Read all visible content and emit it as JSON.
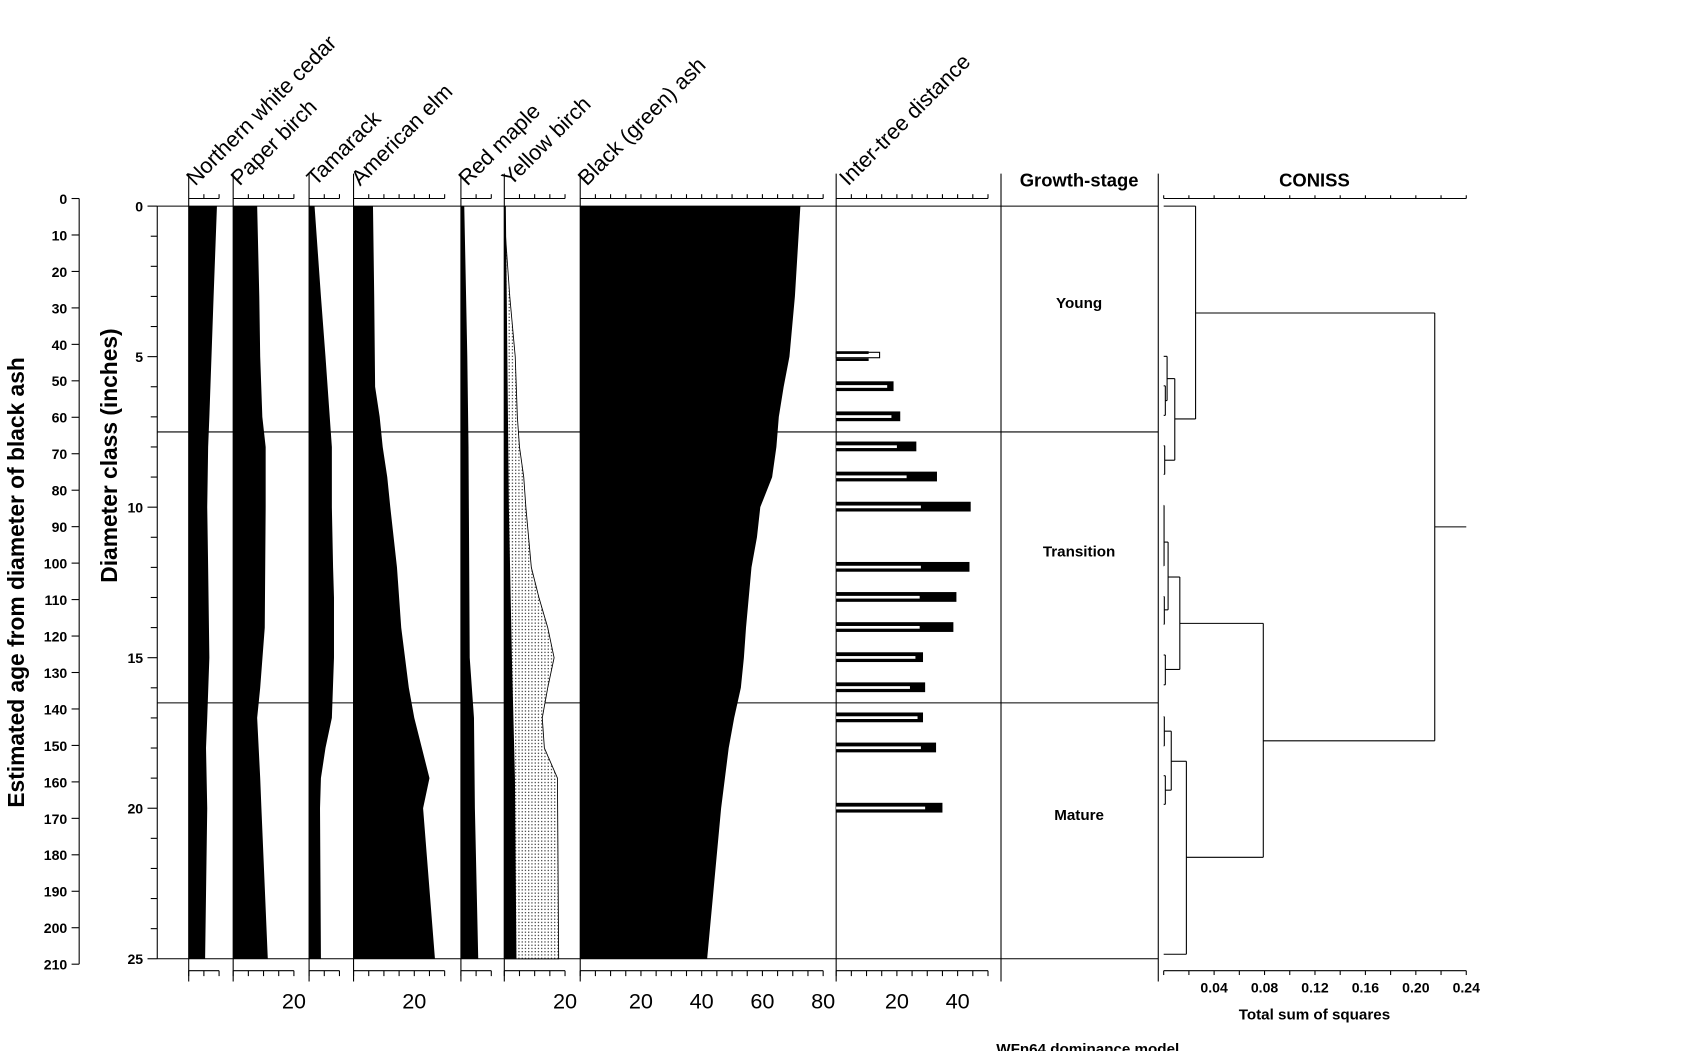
{
  "chart_data": {
    "type": "stratigraphic-diagram",
    "title": "",
    "footer": "WFn64 dominance model",
    "y_axes": [
      {
        "label": "Estimated age from diameter of black ash",
        "range": [
          0,
          210
        ],
        "ticks": [
          0,
          10,
          20,
          30,
          40,
          50,
          60,
          70,
          80,
          90,
          100,
          110,
          120,
          130,
          140,
          150,
          160,
          170,
          180,
          190,
          200,
          210
        ]
      },
      {
        "label": "Diameter class (inches)",
        "range": [
          0,
          25
        ],
        "ticks": [
          0,
          5,
          10,
          15,
          20,
          25
        ]
      }
    ],
    "species": [
      {
        "name": "Northern white cedar",
        "axis_max": 10,
        "tick_labels": [],
        "color": "#000000",
        "profile": [
          [
            0,
            9.3
          ],
          [
            3,
            8.2
          ],
          [
            5,
            7.5
          ],
          [
            7,
            6.8
          ],
          [
            8,
            6.4
          ],
          [
            10,
            6.1
          ],
          [
            12,
            6.4
          ],
          [
            15,
            6.8
          ],
          [
            17,
            6.1
          ],
          [
            18,
            5.7
          ],
          [
            20,
            6.1
          ],
          [
            25,
            5.4
          ]
        ]
      },
      {
        "name": "Paper birch",
        "axis_max": 20,
        "tick_labels": [
          "20"
        ],
        "color": "#000000",
        "profile": [
          [
            0,
            7.9
          ],
          [
            3,
            8.6
          ],
          [
            5,
            8.9
          ],
          [
            7,
            9.6
          ],
          [
            8,
            10.7
          ],
          [
            10,
            10.7
          ],
          [
            14,
            10.4
          ],
          [
            16,
            8.9
          ],
          [
            17,
            7.9
          ],
          [
            19,
            8.9
          ],
          [
            20,
            9.3
          ],
          [
            25,
            11.4
          ]
        ]
      },
      {
        "name": "Tamarack",
        "axis_max": 10,
        "tick_labels": [],
        "color": "#000000",
        "profile": [
          [
            0,
            1.8
          ],
          [
            3,
            3.9
          ],
          [
            5,
            5.4
          ],
          [
            7,
            6.8
          ],
          [
            8,
            7.5
          ],
          [
            10,
            7.5
          ],
          [
            12,
            7.9
          ],
          [
            13,
            8.2
          ],
          [
            15,
            8.2
          ],
          [
            17,
            7.5
          ],
          [
            18,
            5.4
          ],
          [
            19,
            3.9
          ],
          [
            20,
            3.6
          ],
          [
            25,
            3.9
          ]
        ]
      },
      {
        "name": "American elm",
        "axis_max": 30,
        "tick_labels": [
          "20"
        ],
        "color": "#000000",
        "profile": [
          [
            0,
            6.4
          ],
          [
            3,
            6.8
          ],
          [
            6,
            7.1
          ],
          [
            7,
            8.6
          ],
          [
            8,
            9.6
          ],
          [
            9,
            11.1
          ],
          [
            10,
            12.1
          ],
          [
            12,
            14.3
          ],
          [
            14,
            15.7
          ],
          [
            16,
            18.2
          ],
          [
            17,
            20
          ],
          [
            19,
            25
          ],
          [
            20,
            22.9
          ],
          [
            25,
            26.8
          ]
        ]
      },
      {
        "name": "Red maple",
        "axis_max": 10,
        "tick_labels": [],
        "color": "#000000",
        "profile": [
          [
            0,
            1.1
          ],
          [
            5,
            2.1
          ],
          [
            8,
            2.5
          ],
          [
            15,
            2.9
          ],
          [
            16,
            3.6
          ],
          [
            17,
            4.3
          ],
          [
            20,
            4.6
          ],
          [
            25,
            5.7
          ]
        ]
      },
      {
        "name": "Yellow birch",
        "axis_max": 20,
        "tick_labels": [
          "20"
        ],
        "color": "#000000",
        "profile": [
          [
            0,
            0.5
          ],
          [
            5,
            1
          ],
          [
            10,
            1.5
          ],
          [
            15,
            2.5
          ],
          [
            19,
            3.5
          ],
          [
            25,
            4
          ]
        ],
        "exaggerated_profile": [
          [
            0,
            0
          ],
          [
            1,
            0.4
          ],
          [
            3,
            1.8
          ],
          [
            5,
            3.6
          ],
          [
            7,
            4.3
          ],
          [
            8,
            5
          ],
          [
            9,
            6.4
          ],
          [
            10,
            7.1
          ],
          [
            12,
            8.9
          ],
          [
            13,
            11.4
          ],
          [
            14,
            14.3
          ],
          [
            15,
            16.4
          ],
          [
            16,
            14.3
          ],
          [
            17,
            12.5
          ],
          [
            18,
            13.2
          ],
          [
            19,
            17.5
          ],
          [
            25,
            17.9
          ]
        ]
      },
      {
        "name": "Black (green) ash",
        "axis_max": 80,
        "tick_labels": [
          "20",
          "40",
          "60",
          "80"
        ],
        "color": "#000000",
        "profile": [
          [
            0,
            72.5
          ],
          [
            3,
            70.7
          ],
          [
            5,
            68.9
          ],
          [
            6,
            67
          ],
          [
            7,
            65.4
          ],
          [
            8,
            64.6
          ],
          [
            9,
            63.2
          ],
          [
            10,
            59.3
          ],
          [
            11,
            58.2
          ],
          [
            12,
            56.4
          ],
          [
            14,
            54.6
          ],
          [
            15,
            53.9
          ],
          [
            16,
            52.9
          ],
          [
            17,
            50.7
          ],
          [
            18,
            48.9
          ],
          [
            20,
            46.4
          ],
          [
            25,
            41.8
          ]
        ]
      }
    ],
    "inter_tree_distance": {
      "name": "Inter-tree distance",
      "axis_max": 50,
      "tick_labels": [
        "20",
        "40"
      ],
      "bars": [
        {
          "class": 5,
          "outer": 10.7,
          "inner": 14.3
        },
        {
          "class": 6,
          "outer": 18.9,
          "inner": 16.8
        },
        {
          "class": 7,
          "outer": 21.1,
          "inner": 18.2
        },
        {
          "class": 8,
          "outer": 26.4,
          "inner": 20.0
        },
        {
          "class": 9,
          "outer": 33.2,
          "inner": 23.2
        },
        {
          "class": 10,
          "outer": 44.3,
          "inner": 27.9
        },
        {
          "class": 12,
          "outer": 43.9,
          "inner": 27.9
        },
        {
          "class": 13,
          "outer": 39.6,
          "inner": 27.5
        },
        {
          "class": 14,
          "outer": 38.6,
          "inner": 27.5
        },
        {
          "class": 15,
          "outer": 28.6,
          "inner": 26.1
        },
        {
          "class": 16,
          "outer": 29.3,
          "inner": 24.3
        },
        {
          "class": 17,
          "outer": 28.6,
          "inner": 26.8
        },
        {
          "class": 18,
          "outer": 32.9,
          "inner": 27.9
        },
        {
          "class": 20,
          "outer": 35.0,
          "inner": 29.3
        }
      ]
    },
    "growth_stage": {
      "name": "Growth-stage",
      "zone_boundaries": [
        7.5,
        16.5
      ],
      "zones": [
        {
          "label": "Young",
          "from": 0,
          "to": 7.5
        },
        {
          "label": "Transition",
          "from": 7.5,
          "to": 16.5
        },
        {
          "label": "Mature",
          "from": 16.5,
          "to": 25
        }
      ]
    },
    "coniss": {
      "name": "CONISS",
      "xlabel": "Total sum of squares",
      "xlim": [
        0,
        0.24
      ],
      "tick_labels": [
        "0.04",
        "0.08",
        "0.12",
        "0.16",
        "0.20",
        "0.24"
      ],
      "root": {
        "ss": 0.215,
        "top": 3.55,
        "bottom": 17.76
      },
      "nodes": [
        {
          "ss": 0.215,
          "top": 3.55,
          "bottom": 17.76,
          "top_child": 0.0253,
          "bottom_child": 0.079
        },
        {
          "ss": 0.0253,
          "top": 0,
          "bottom": 7.07,
          "top_child": 0,
          "bottom_child": 0.0088
        },
        {
          "ss": 0.0088,
          "top": 5.73,
          "bottom": 8.44,
          "top_child": 0.0027,
          "bottom_child": 0.0008
        },
        {
          "ss": 0.0027,
          "top": 4.99,
          "bottom": 6.46,
          "top_child": 0,
          "bottom_child": 0.0013
        },
        {
          "ss": 0.0013,
          "top": 5.97,
          "bottom": 6.95,
          "top_child": 0,
          "bottom_child": 0
        },
        {
          "ss": 0.0008,
          "top": 7.96,
          "bottom": 8.91,
          "top_child": 0,
          "bottom_child": 0
        },
        {
          "ss": 0.079,
          "top": 13.86,
          "bottom": 21.63,
          "top_child": 0.0128,
          "bottom_child": 0.018
        },
        {
          "ss": 0.0128,
          "top": 12.32,
          "bottom": 15.39,
          "top_child": 0.0035,
          "bottom_child": 0.0013
        },
        {
          "ss": 0.0035,
          "top": 11.16,
          "bottom": 13.41,
          "top_child": 0.0003,
          "bottom_child": 0.0005
        },
        {
          "ss": 0.0003,
          "top": 9.94,
          "bottom": 11.95,
          "top_child": 0,
          "bottom_child": 0
        },
        {
          "ss": 0.0005,
          "top": 12.97,
          "bottom": 13.89,
          "top_child": 0,
          "bottom_child": 0
        },
        {
          "ss": 0.0013,
          "top": 14.91,
          "bottom": 15.9,
          "top_child": 0,
          "bottom_child": 0
        },
        {
          "ss": 0.018,
          "top": 18.44,
          "bottom": 24.85,
          "top_child": 0.006,
          "bottom_child": 0
        },
        {
          "ss": 0.006,
          "top": 17.44,
          "bottom": 19.4,
          "top_child": 0.0005,
          "bottom_child": 0.0013
        },
        {
          "ss": 0.0005,
          "top": 16.96,
          "bottom": 17.93,
          "top_child": 0,
          "bottom_child": 0
        },
        {
          "ss": 0.0013,
          "top": 18.92,
          "bottom": 19.87,
          "top_child": 0,
          "bottom_child": 0
        }
      ]
    }
  }
}
